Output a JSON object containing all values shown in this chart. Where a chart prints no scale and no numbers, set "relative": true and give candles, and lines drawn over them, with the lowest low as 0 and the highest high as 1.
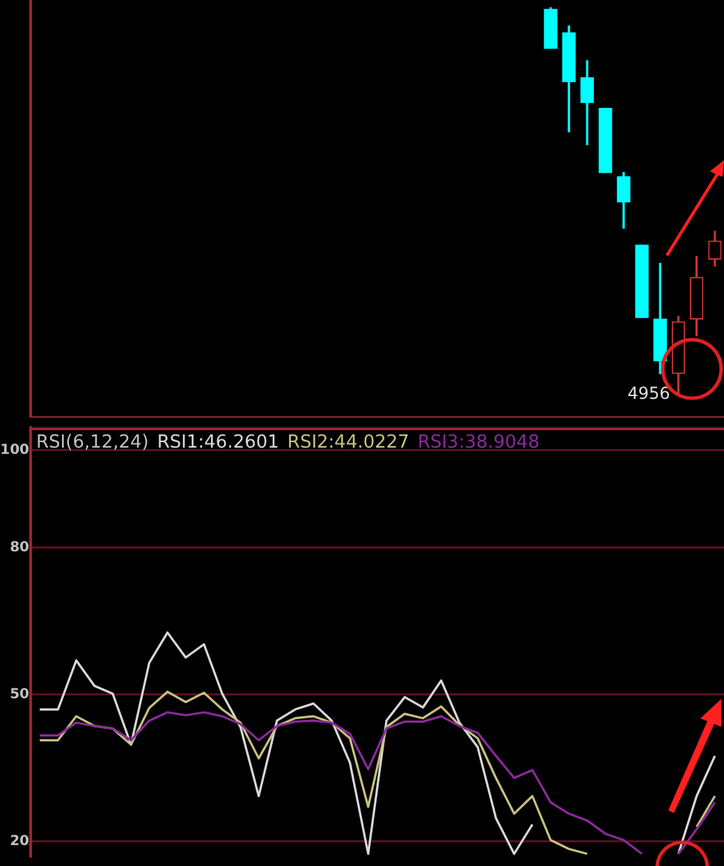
{
  "chart_data": [
    {
      "type": "candlestick",
      "relative": true,
      "tick_labels": false,
      "categories": [
        null,
        null,
        null,
        null,
        null,
        null,
        null,
        null,
        null,
        null,
        null,
        null,
        null,
        null,
        null,
        null,
        null,
        null,
        null,
        null,
        null,
        null,
        null,
        null,
        null,
        null,
        null,
        null,
        null,
        null,
        null,
        null,
        null,
        null,
        null,
        null,
        null,
        null
      ],
      "ohlc": [
        null,
        null,
        null,
        null,
        null,
        null,
        null,
        null,
        null,
        null,
        null,
        null,
        null,
        null,
        null,
        null,
        null,
        null,
        null,
        null,
        null,
        null,
        null,
        null,
        null,
        null,
        null,
        null,
        [
          0.996,
          1,
          0.895,
          0.895
        ],
        [
          0.935,
          0.953,
          0.679,
          0.809
        ],
        [
          0.819,
          0.863,
          0.646,
          0.755
        ],
        [
          0.74,
          0.74,
          0.574,
          0.574
        ],
        [
          0.563,
          0.574,
          0.43,
          0.498
        ],
        [
          0.386,
          0.386,
          0.199,
          0.199
        ],
        [
          0.195,
          0.339,
          0.054,
          0.087
        ],
        [
          0.054,
          0.202,
          0,
          0.188
        ],
        [
          0.195,
          0.357,
          0.152,
          0.303
        ],
        [
          0.35,
          0.422,
          0.332,
          0.397
        ]
      ],
      "colors": [
        null,
        null,
        null,
        null,
        null,
        null,
        null,
        null,
        null,
        null,
        null,
        null,
        null,
        null,
        null,
        null,
        null,
        null,
        null,
        null,
        null,
        null,
        null,
        null,
        null,
        null,
        null,
        null,
        "#00ffff",
        "#00ffff",
        "#00ffff",
        "#00ffff",
        "#00ffff",
        "#00ffff",
        "#00ffff",
        "#c83232",
        "#c83232",
        "#c83232"
      ],
      "annotations": [
        "4956"
      ]
    },
    {
      "type": "line",
      "title": "RSI(6,12,24)",
      "legend": "top left",
      "grid": "y",
      "tick_labels": "y",
      "marker": "none",
      "categories": [
        null,
        null,
        null,
        null,
        null,
        null,
        null,
        null,
        null,
        null,
        null,
        null,
        null,
        null,
        null,
        null,
        null,
        null,
        null,
        null,
        null,
        null,
        null,
        null,
        null,
        null,
        null,
        null,
        null,
        null,
        null,
        null,
        null,
        null,
        null,
        null,
        null,
        null
      ],
      "ylim": [
        17,
        104.6
      ],
      "yticks": [
        100,
        80,
        50,
        20
      ],
      "series": [
        {
          "name": "RSI1:46.2601",
          "color": "#d8d8d8",
          "values": [
            47.0,
            47.0,
            57.0,
            51.8,
            50.2,
            39.8,
            56.5,
            62.7,
            57.6,
            60.3,
            50.2,
            43.4,
            29.3,
            44.7,
            47.0,
            48.2,
            44.7,
            36.1,
            17.5,
            44.7,
            49.5,
            47.4,
            52.9,
            44.3,
            39.3,
            24.8,
            17.5,
            23.5,
            null,
            null,
            null,
            null,
            null,
            null,
            null,
            17.5,
            29.3,
            37.5
          ]
        },
        {
          "name": "RSI2:44.0227",
          "color": "#c8c080",
          "values": [
            40.7,
            40.7,
            45.6,
            43.6,
            43.1,
            39.8,
            47.3,
            50.6,
            48.5,
            50.4,
            47.0,
            44.3,
            37.0,
            43.6,
            45.2,
            45.6,
            44.3,
            41.1,
            27.1,
            43.4,
            46.1,
            45.2,
            47.6,
            43.8,
            41.1,
            33.0,
            25.7,
            29.3,
            20.3,
            18.5,
            17.5,
            null,
            null,
            null,
            null,
            null,
            23.0,
            29.3
          ]
        },
        {
          "name": "RSI3:38.9048",
          "color": "#8a2a9a",
          "values": [
            41.7,
            41.7,
            44.3,
            43.6,
            43.1,
            40.7,
            44.7,
            46.4,
            45.8,
            46.4,
            45.6,
            44.0,
            40.7,
            43.6,
            44.5,
            44.7,
            44.3,
            42.0,
            34.8,
            43.1,
            44.5,
            44.5,
            45.6,
            43.6,
            42.2,
            37.5,
            33.0,
            34.6,
            28.0,
            25.7,
            24.3,
            21.6,
            20.3,
            17.5,
            null,
            17.5,
            22.5,
            28.0
          ]
        }
      ]
    }
  ]
}
